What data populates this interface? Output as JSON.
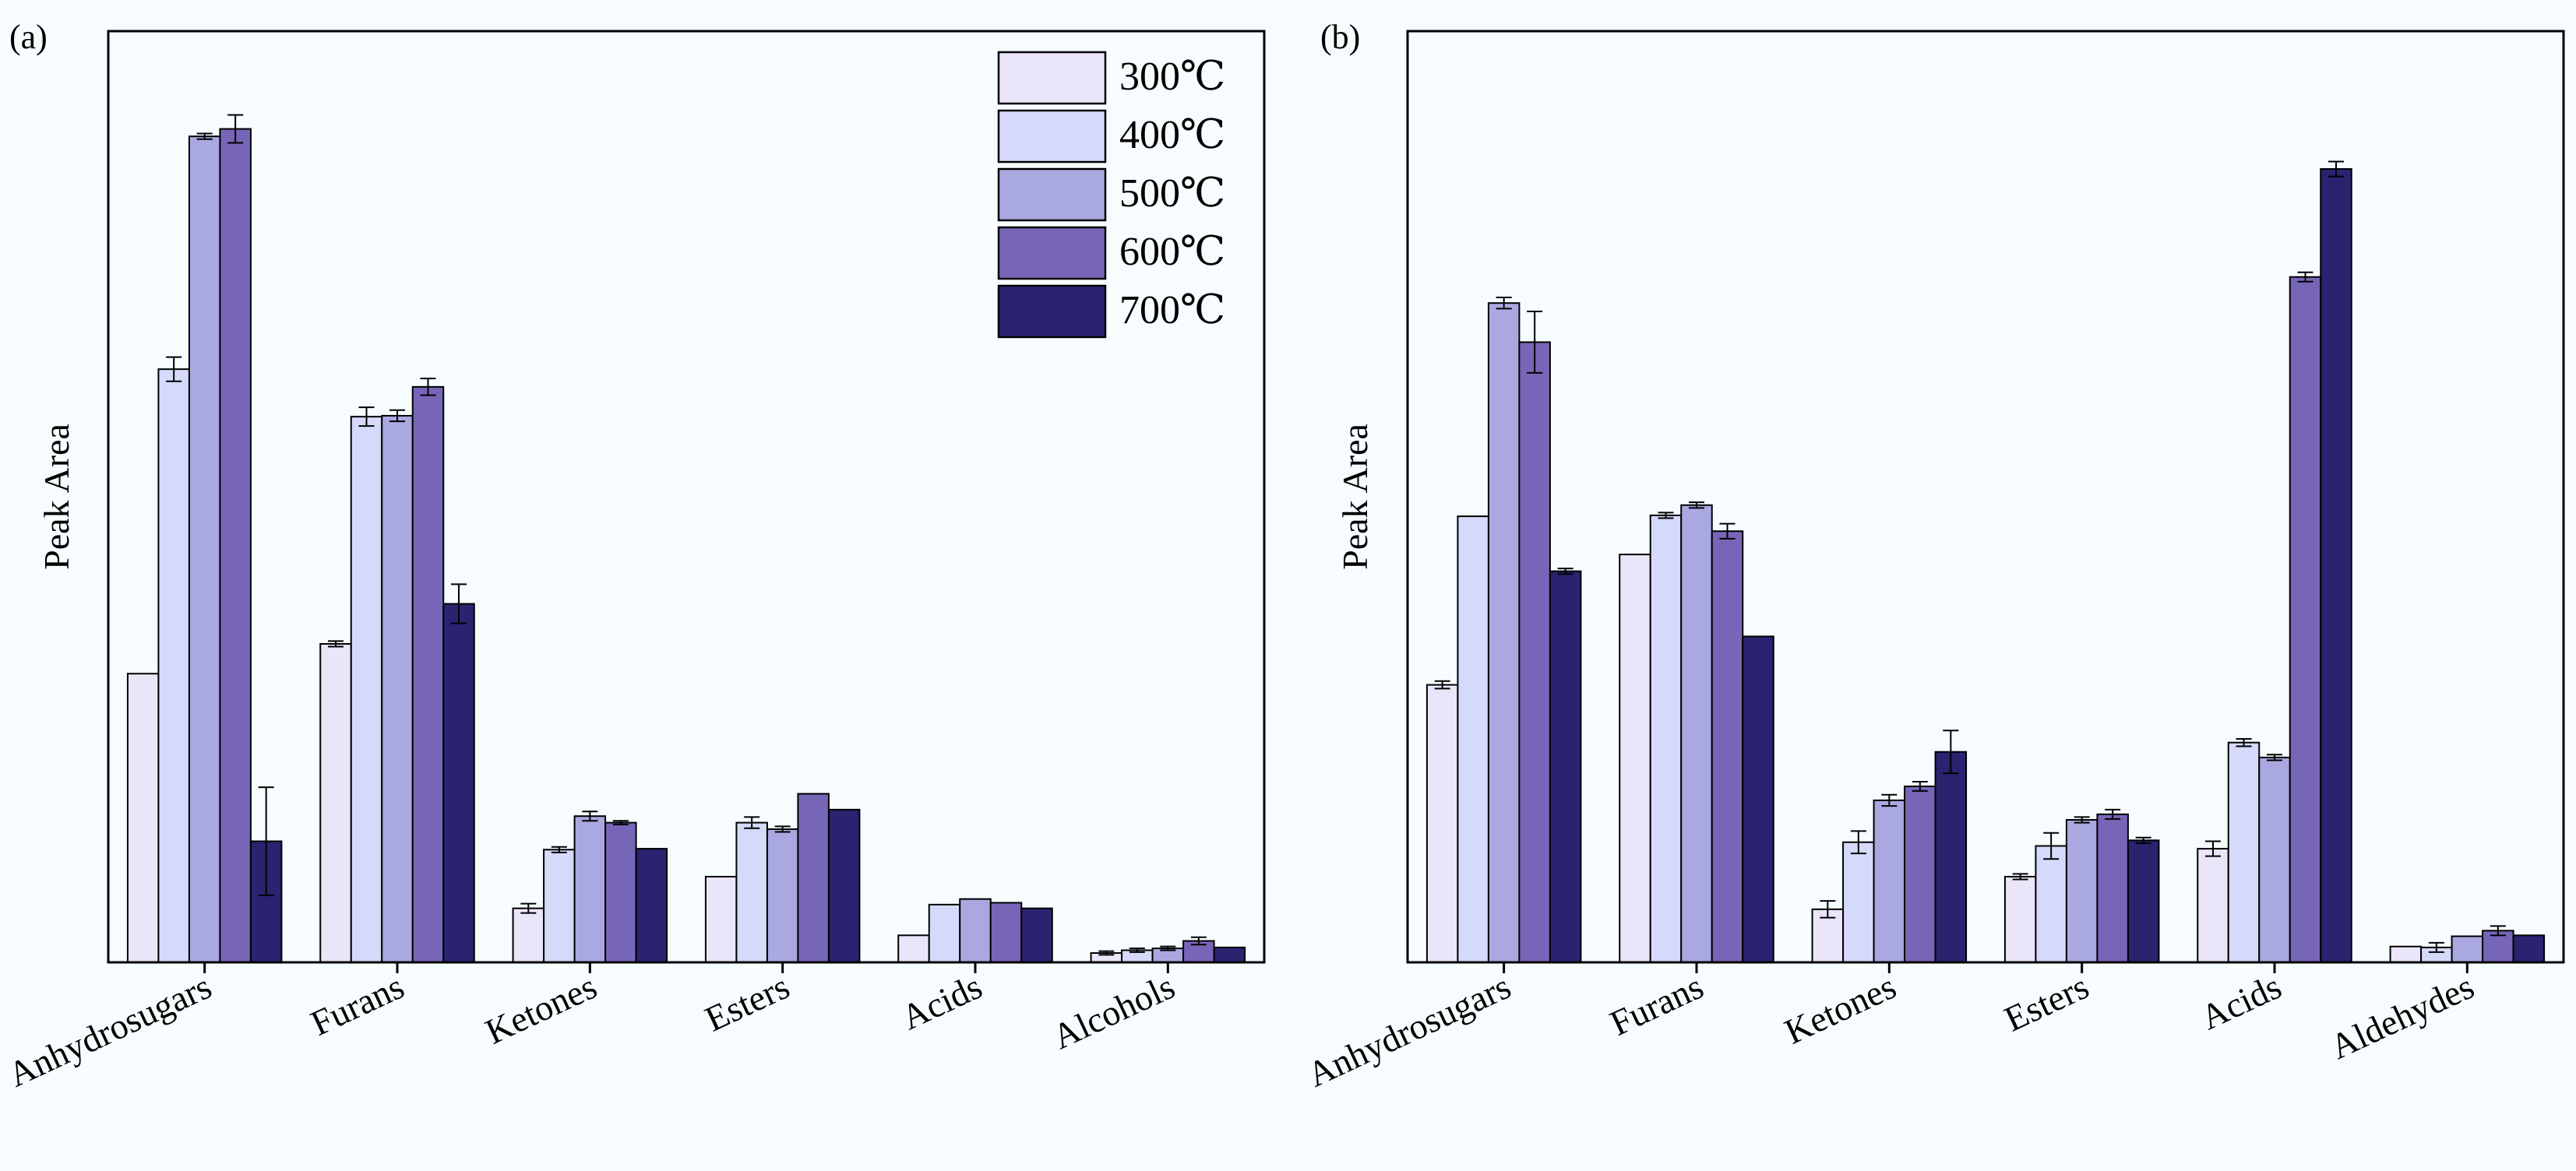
{
  "figure": {
    "background": "#f7fdff",
    "series_colors": [
      "#ebe5fa",
      "#d5dafb",
      "#aaa8e0",
      "#7766b7",
      "#2a2370"
    ],
    "legend_position": "top-right of panel (a)"
  },
  "chart_data": [
    {
      "panel_label": "(a)",
      "type": "bar",
      "title": "",
      "xlabel": "",
      "ylabel": "Peak Area",
      "ylim": [
        0,
        100
      ],
      "grid": false,
      "categories": [
        "Anhydrosugars",
        "Furans",
        "Ketones",
        "Esters",
        "Acids",
        "Alcohols"
      ],
      "series": [
        {
          "name": "300℃",
          "values": [
            31.0,
            34.2,
            5.8,
            9.2,
            2.9,
            1.0
          ],
          "errors": [
            0,
            0.3,
            0.5,
            0,
            0,
            0.2
          ]
        },
        {
          "name": "400℃",
          "values": [
            63.7,
            58.6,
            12.1,
            15.0,
            6.2,
            1.3
          ],
          "errors": [
            1.3,
            1.0,
            0.3,
            0.6,
            0,
            0.2
          ]
        },
        {
          "name": "500℃",
          "values": [
            88.7,
            58.7,
            15.7,
            14.3,
            6.8,
            1.5
          ],
          "errors": [
            0.3,
            0.6,
            0.5,
            0.3,
            0,
            0.2
          ]
        },
        {
          "name": "600℃",
          "values": [
            89.5,
            61.8,
            15.0,
            18.1,
            6.4,
            2.3
          ],
          "errors": [
            1.5,
            0.9,
            0.2,
            0,
            0,
            0.4
          ]
        },
        {
          "name": "700℃",
          "values": [
            13.0,
            38.5,
            12.2,
            16.4,
            5.8,
            1.6
          ],
          "errors": [
            5.8,
            2.1,
            0,
            0,
            0,
            0
          ]
        }
      ]
    },
    {
      "panel_label": "(b)",
      "type": "bar",
      "title": "",
      "xlabel": "",
      "ylabel": "Peak Area",
      "ylim": [
        0,
        100
      ],
      "grid": false,
      "categories": [
        "Anhydrosugars",
        "Furans",
        "Ketones",
        "Esters",
        "Acids",
        "Aldehydes"
      ],
      "series": [
        {
          "name": "300℃",
          "values": [
            29.8,
            43.8,
            5.7,
            9.2,
            12.2,
            1.7
          ],
          "errors": [
            0.4,
            0,
            0.9,
            0.3,
            0.8,
            0
          ]
        },
        {
          "name": "400℃",
          "values": [
            47.9,
            48.0,
            12.9,
            12.5,
            23.6,
            1.6
          ],
          "errors": [
            0,
            0.3,
            1.2,
            1.4,
            0.4,
            0.5
          ]
        },
        {
          "name": "500℃",
          "values": [
            70.8,
            49.1,
            17.4,
            15.3,
            22.0,
            2.8
          ],
          "errors": [
            0.6,
            0.3,
            0.6,
            0.3,
            0.3,
            0
          ]
        },
        {
          "name": "600℃",
          "values": [
            66.6,
            46.3,
            18.9,
            15.9,
            73.6,
            3.4
          ],
          "errors": [
            3.3,
            0.8,
            0.5,
            0.5,
            0.5,
            0.5
          ]
        },
        {
          "name": "700℃",
          "values": [
            42.0,
            35.0,
            22.6,
            13.1,
            85.2,
            2.9
          ],
          "errors": [
            0.3,
            0,
            2.3,
            0.3,
            0.8,
            0
          ]
        }
      ]
    }
  ]
}
